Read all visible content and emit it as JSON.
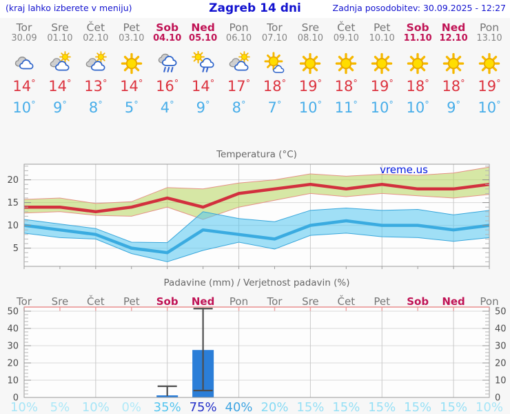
{
  "header": {
    "menu_hint": "(kraj lahko izberete v meniju)",
    "title": "Zagreb 14 dni",
    "last_update": "Zadnja posodobitev: 30.09.2025 - 12:27"
  },
  "colors": {
    "header-blue": "#1212cf",
    "weekend": "#c01355",
    "tmax": "#dc333f",
    "tmin": "#47ade9",
    "bar": "#2b7ed8",
    "watermark": "#0016e0"
  },
  "days": [
    {
      "name": "Tor",
      "date": "30.09",
      "weekend": false,
      "icon": "cloudy",
      "tmax": 14,
      "tmin": 10,
      "pop": "10%"
    },
    {
      "name": "Sre",
      "date": "01.10",
      "weekend": false,
      "icon": "sun-cloud",
      "tmax": 14,
      "tmin": 9,
      "pop": "5%"
    },
    {
      "name": "Čet",
      "date": "02.10",
      "weekend": false,
      "icon": "sun-cloud",
      "tmax": 13,
      "tmin": 8,
      "pop": "10%"
    },
    {
      "name": "Pet",
      "date": "03.10",
      "weekend": false,
      "icon": "sunny",
      "tmax": 14,
      "tmin": 5,
      "pop": "0%"
    },
    {
      "name": "Sob",
      "date": "04.10",
      "weekend": true,
      "icon": "rain",
      "tmax": 16,
      "tmin": 4,
      "pop": "35%"
    },
    {
      "name": "Ned",
      "date": "05.10",
      "weekend": true,
      "icon": "sun-rain",
      "tmax": 14,
      "tmin": 9,
      "pop": "75%"
    },
    {
      "name": "Pon",
      "date": "06.10",
      "weekend": false,
      "icon": "sun-cloud",
      "tmax": 17,
      "tmin": 8,
      "pop": "40%"
    },
    {
      "name": "Tor",
      "date": "07.10",
      "weekend": false,
      "icon": "sun-small-cloud",
      "tmax": 18,
      "tmin": 7,
      "pop": "20%"
    },
    {
      "name": "Sre",
      "date": "08.10",
      "weekend": false,
      "icon": "sunny",
      "tmax": 19,
      "tmin": 10,
      "pop": "15%"
    },
    {
      "name": "Čet",
      "date": "09.10",
      "weekend": false,
      "icon": "sunny",
      "tmax": 18,
      "tmin": 11,
      "pop": "15%"
    },
    {
      "name": "Pet",
      "date": "10.10",
      "weekend": false,
      "icon": "sunny",
      "tmax": 19,
      "tmin": 10,
      "pop": "15%"
    },
    {
      "name": "Sob",
      "date": "11.10",
      "weekend": true,
      "icon": "sunny",
      "tmax": 18,
      "tmin": 10,
      "pop": "15%"
    },
    {
      "name": "Ned",
      "date": "12.10",
      "weekend": true,
      "icon": "sunny",
      "tmax": 18,
      "tmin": 9,
      "pop": "15%"
    },
    {
      "name": "Pon",
      "date": "13.10",
      "weekend": false,
      "icon": "sunny",
      "tmax": 19,
      "tmin": 10,
      "pop": "10%"
    }
  ],
  "chart_data": {
    "temperature": {
      "type": "line",
      "title": "Temperatura (°C)",
      "watermark": "vreme.us",
      "categories": [
        "30.09",
        "01.10",
        "02.10",
        "03.10",
        "04.10",
        "05.10",
        "06.10",
        "07.10",
        "08.10",
        "09.10",
        "10.10",
        "11.10",
        "12.10",
        "13.10"
      ],
      "ylim": [
        1,
        23.4
      ],
      "yticks": [
        5,
        10,
        15,
        20
      ],
      "grid": "horizontal-major, vertical-every-2-days",
      "series": [
        {
          "name": "max-temp",
          "color": "#d2303e",
          "band_fill": "rgba(183,214,92,0.55)",
          "band_edge": "#e59286",
          "values": [
            14,
            14,
            13,
            14,
            16,
            14,
            17,
            18,
            19,
            18,
            19,
            18,
            18,
            19
          ],
          "band_high": [
            15.7,
            16,
            14.8,
            15.2,
            18.3,
            18,
            19.3,
            20,
            21.3,
            20.8,
            21.2,
            21,
            21.5,
            22.8
          ],
          "band_low": [
            12.7,
            13,
            12.2,
            12,
            14,
            11.3,
            14,
            15.5,
            17,
            16.3,
            17,
            16.5,
            16,
            16.8
          ]
        },
        {
          "name": "min-temp",
          "color": "#3aabe0",
          "band_fill": "rgba(84,199,240,0.55)",
          "band_edge": "#38a6db",
          "values": [
            10,
            9,
            8,
            5,
            4,
            9,
            8,
            7,
            10,
            11,
            10,
            10,
            9,
            10
          ],
          "band_high": [
            11.3,
            10.3,
            9.3,
            6.3,
            6.2,
            13,
            11.5,
            10.8,
            13.3,
            13.8,
            13.3,
            13.5,
            12.3,
            13.3
          ],
          "band_low": [
            8.3,
            7.3,
            7,
            3.8,
            2,
            4.5,
            6.3,
            4.8,
            7.8,
            8.3,
            7.5,
            7.3,
            6.5,
            7.3
          ]
        }
      ]
    },
    "precipitation": {
      "type": "bar",
      "title": "Padavine (mm) / Verjetnost padavin (%)",
      "day_labels": [
        "Tor",
        "Sre",
        "Čet",
        "Pet",
        "Sob",
        "Ned",
        "Pon",
        "Tor",
        "Sre",
        "Čet",
        "Pet",
        "Sob",
        "Ned",
        "Pon"
      ],
      "weekend_indices": [
        4,
        5,
        11,
        12
      ],
      "ylim": [
        0,
        52.4
      ],
      "yticks": [
        0,
        10,
        20,
        30,
        40,
        50
      ],
      "values": [
        0,
        0,
        0,
        0,
        1.2,
        27.5,
        0,
        0,
        0,
        0,
        0,
        0,
        0,
        0
      ],
      "whiskers": [
        {
          "index": 4,
          "low": 0.8,
          "high": 6.5,
          "caps": "high"
        },
        {
          "index": 5,
          "low": 4,
          "high": 51.5,
          "caps": "both"
        }
      ],
      "pop_labels": [
        "10%",
        "5%",
        "10%",
        "0%",
        "35%",
        "75%",
        "40%",
        "20%",
        "15%",
        "15%",
        "15%",
        "15%",
        "15%",
        "10%"
      ],
      "pop_colors": [
        "#a6e5f7",
        "#ace8f8",
        "#a6e5f7",
        "#b0e9f8",
        "#54c5ef",
        "#2531c8",
        "#3fa5e2",
        "#86daf4",
        "#97e0f6",
        "#97e0f6",
        "#97e0f6",
        "#97e0f6",
        "#97e0f6",
        "#a6e5f7"
      ]
    }
  }
}
